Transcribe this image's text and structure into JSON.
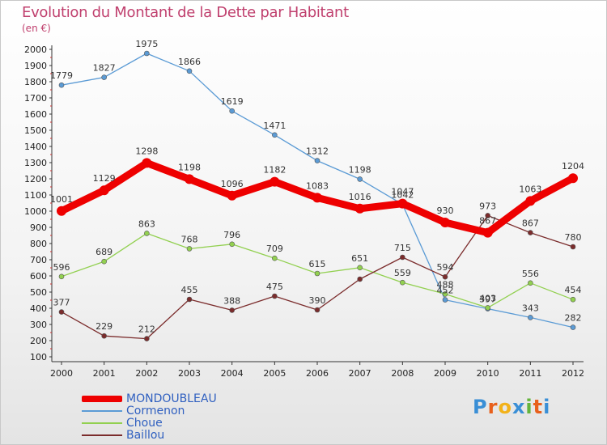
{
  "chart_data": {
    "type": "line",
    "title": "Evolution du Montant de la Dette par Habitant",
    "subtitle": "(en €)",
    "x": [
      "2000",
      "2001",
      "2002",
      "2003",
      "2004",
      "2005",
      "2006",
      "2007",
      "2008",
      "2009",
      "2010",
      "2011",
      "2012"
    ],
    "yticks": [
      "100",
      "200",
      "300",
      "400",
      "500",
      "600",
      "700",
      "800",
      "900",
      "1000",
      "1100",
      "1200",
      "1300",
      "1400",
      "1500",
      "1600",
      "1700",
      "1800",
      "1900",
      "2000"
    ],
    "ylim": [
      100,
      2000
    ],
    "grid": false,
    "legend_position": "bottom-left",
    "series": [
      {
        "name": "MONDOUBLEAU",
        "color": "#ee0000",
        "values": [
          1001,
          1129,
          1298,
          1198,
          1096,
          1182,
          1083,
          1016,
          1047,
          930,
          867,
          1063,
          1204
        ]
      },
      {
        "name": "Cormenon",
        "color": "#5b9bd5",
        "values": [
          1779,
          1827,
          1975,
          1866,
          1619,
          1471,
          1312,
          1198,
          1042,
          452,
          397,
          343,
          282
        ]
      },
      {
        "name": "Choue",
        "color": "#92d050",
        "values": [
          596,
          689,
          863,
          768,
          796,
          709,
          615,
          651,
          559,
          488,
          403,
          556,
          454
        ]
      },
      {
        "name": "Baillou",
        "color": "#7b2c2c",
        "values": [
          377,
          229,
          212,
          455,
          388,
          475,
          390,
          580,
          715,
          594,
          973,
          867,
          780
        ]
      }
    ],
    "data_labels": [
      [
        "1001",
        "1129",
        "1298",
        "1198",
        "1096",
        "1182",
        "1083",
        "1016",
        "1047",
        "930",
        "867",
        "1063",
        "1204"
      ],
      [
        "1779",
        "1827",
        "1975",
        "1866",
        "1619",
        "1471",
        "1312",
        "1198",
        "1042",
        "452",
        "397",
        "343",
        "282"
      ],
      [
        "596",
        "689",
        "863",
        "768",
        "796",
        "709",
        "615",
        "651",
        "559",
        "488",
        "403",
        "556",
        "454"
      ],
      [
        "377",
        "229",
        "212",
        "455",
        "388",
        "475",
        "390",
        "",
        "715",
        "594",
        "973",
        "867",
        "780"
      ]
    ]
  },
  "legend": {
    "items": [
      "MONDOUBLEAU",
      "Cormenon",
      "Choue",
      "Baillou"
    ]
  },
  "logo": {
    "text": "Proxiti"
  }
}
